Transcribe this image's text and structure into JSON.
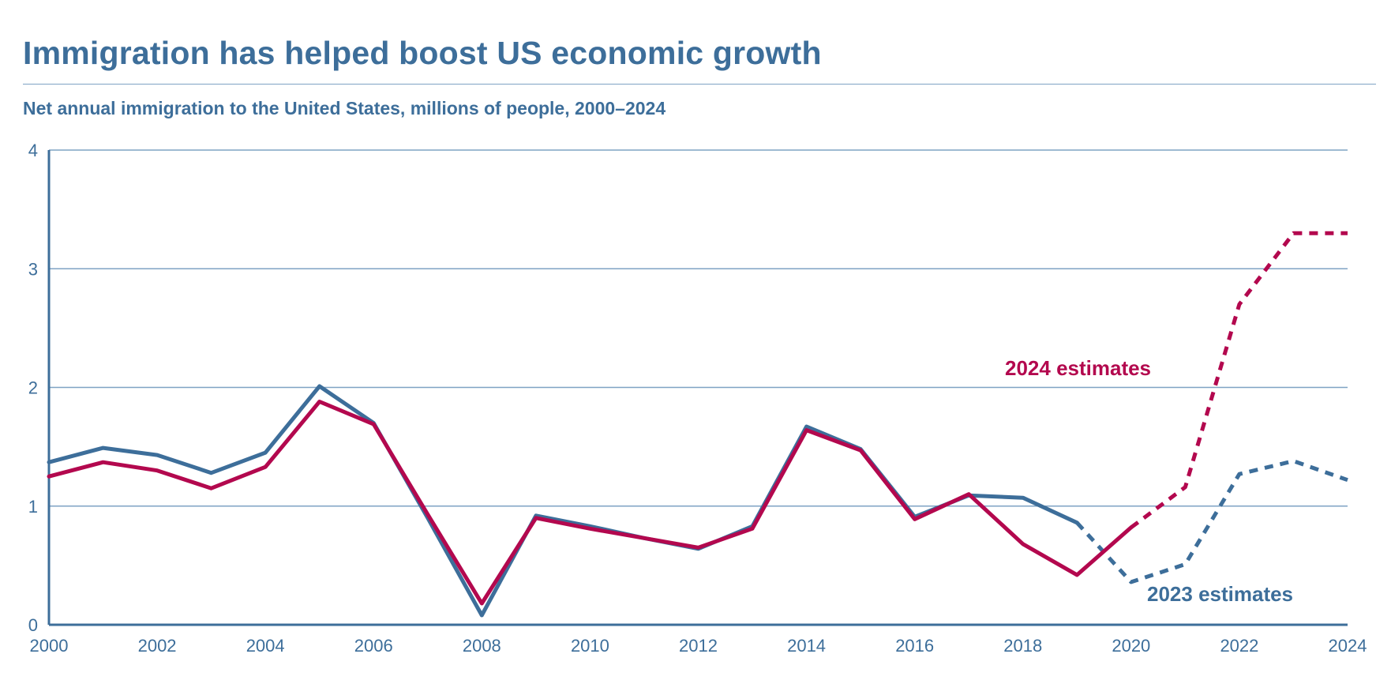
{
  "title": "Immigration has helped boost US economic growth",
  "subtitle": "Net annual immigration to the United States, millions of people, 2000–2024",
  "colors": {
    "title": "#3d6e9a",
    "series_2023": "#3d6e9a",
    "series_2024": "#b3084e",
    "grid": "#7fa3c4"
  },
  "chart_data": {
    "type": "line",
    "title": "Immigration has helped boost US economic growth",
    "subtitle": "Net annual immigration to the United States, millions of people, 2000–2024",
    "xlabel": "",
    "ylabel": "",
    "xlim": [
      2000,
      2024
    ],
    "ylim": [
      0,
      4
    ],
    "x_ticks": [
      2000,
      2002,
      2004,
      2006,
      2008,
      2010,
      2012,
      2014,
      2016,
      2018,
      2020,
      2022,
      2024
    ],
    "y_ticks": [
      0,
      1,
      2,
      3,
      4
    ],
    "x_tick_labels": [
      "2000",
      "2002",
      "2004",
      "2006",
      "2008",
      "2010",
      "2012",
      "2014",
      "2016",
      "2018",
      "2020",
      "2022",
      "2024"
    ],
    "y_tick_labels": [
      "0",
      "1",
      "2",
      "3",
      "4"
    ],
    "grid": "horizontal",
    "series": [
      {
        "name": "2023 estimates",
        "color": "#3d6e9a",
        "solid": [
          [
            2000,
            1.37
          ],
          [
            2001,
            1.49
          ],
          [
            2002,
            1.43
          ],
          [
            2003,
            1.28
          ],
          [
            2004,
            1.45
          ],
          [
            2005,
            2.01
          ],
          [
            2006,
            1.7
          ],
          [
            2007,
            0.9
          ],
          [
            2008,
            0.08
          ],
          [
            2009,
            0.92
          ],
          [
            2010,
            0.83
          ],
          [
            2011,
            0.73
          ],
          [
            2012,
            0.64
          ],
          [
            2013,
            0.83
          ],
          [
            2014,
            1.67
          ],
          [
            2015,
            1.48
          ],
          [
            2016,
            0.91
          ],
          [
            2017,
            1.09
          ],
          [
            2018,
            1.07
          ],
          [
            2019,
            0.86
          ]
        ],
        "dashed": [
          [
            2019,
            0.86
          ],
          [
            2020,
            0.36
          ],
          [
            2021,
            0.51
          ],
          [
            2022,
            1.27
          ],
          [
            2023,
            1.38
          ],
          [
            2024,
            1.22
          ]
        ]
      },
      {
        "name": "2024 estimates",
        "color": "#b3084e",
        "solid": [
          [
            2000,
            1.25
          ],
          [
            2001,
            1.37
          ],
          [
            2002,
            1.3
          ],
          [
            2003,
            1.15
          ],
          [
            2004,
            1.33
          ],
          [
            2005,
            1.88
          ],
          [
            2006,
            1.69
          ],
          [
            2007,
            0.93
          ],
          [
            2008,
            0.18
          ],
          [
            2009,
            0.9
          ],
          [
            2010,
            0.81
          ],
          [
            2011,
            0.73
          ],
          [
            2012,
            0.65
          ],
          [
            2013,
            0.81
          ],
          [
            2014,
            1.64
          ],
          [
            2015,
            1.47
          ],
          [
            2016,
            0.89
          ],
          [
            2017,
            1.1
          ],
          [
            2018,
            0.68
          ],
          [
            2019,
            0.42
          ],
          [
            2020,
            0.82
          ]
        ],
        "dashed": [
          [
            2020,
            0.82
          ],
          [
            2021,
            1.16
          ],
          [
            2022,
            2.7
          ],
          [
            2023,
            3.3
          ],
          [
            2024,
            3.3
          ]
        ]
      }
    ],
    "annotations": {
      "label_2024": "2024 estimates",
      "label_2023": "2023 estimates"
    }
  }
}
